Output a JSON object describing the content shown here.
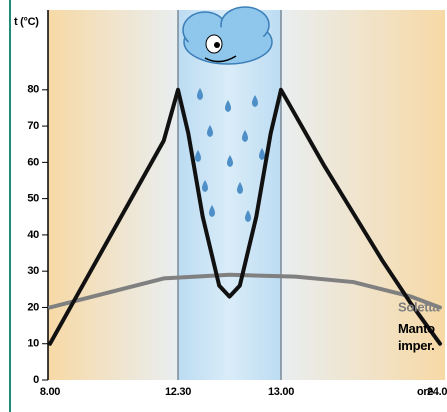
{
  "chart_data": {
    "type": "line",
    "y_label": "t (°C)",
    "x_label": "ore",
    "ylim": [
      0,
      102
    ],
    "yticks": [
      0,
      10,
      20,
      30,
      40,
      50,
      60,
      70,
      80
    ],
    "xlim": [
      8,
      24
    ],
    "xticks": [
      {
        "value": 8,
        "label": "8.00"
      },
      {
        "value": 12.5,
        "label": "12.30"
      },
      {
        "value": 13,
        "label": "13.00"
      },
      {
        "value": 24,
        "label": "24.00"
      }
    ],
    "series": [
      {
        "name": "Manto imper.",
        "color": "#111111",
        "x": [
          8,
          9,
          10,
          11,
          12,
          12.5,
          12.55,
          12.62,
          12.7,
          12.75,
          12.8,
          12.88,
          12.95,
          13,
          14,
          16,
          18,
          20,
          22,
          24
        ],
        "values": [
          10,
          24,
          38,
          52,
          66,
          80,
          68,
          45,
          26,
          23,
          26,
          45,
          68,
          80,
          73,
          59,
          46,
          33,
          21,
          10
        ]
      },
      {
        "name": "Soletta",
        "color": "#808080",
        "x": [
          8,
          10,
          12,
          12.75,
          14,
          18,
          22,
          24
        ],
        "values": [
          20,
          24,
          28,
          29,
          28.5,
          27,
          23,
          20
        ]
      }
    ]
  }
}
